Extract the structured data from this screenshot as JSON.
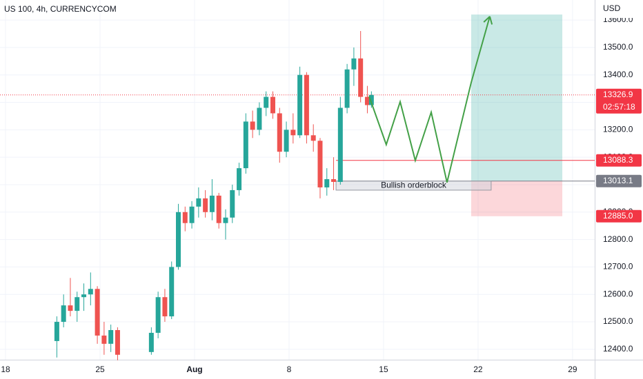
{
  "chart_data": {
    "type": "candlestick",
    "title": "US 100, 4h, CURRENCYCOM",
    "currency": "USD",
    "colors": {
      "up": "#26a69a",
      "down": "#ef5350"
    },
    "xlim": [
      -0.41,
      43.64
    ],
    "ylim": [
      12362,
      13673
    ],
    "xticks": [
      {
        "value": 0,
        "label": "18"
      },
      {
        "value": 7,
        "label": "25"
      },
      {
        "value": 14,
        "label": "Aug"
      },
      {
        "value": 21,
        "label": "8"
      },
      {
        "value": 28,
        "label": "15"
      },
      {
        "value": 35,
        "label": "22"
      },
      {
        "value": 42,
        "label": "29"
      }
    ],
    "yticks": [
      {
        "value": 12400,
        "label": "12400.0"
      },
      {
        "value": 12500,
        "label": "12500.0"
      },
      {
        "value": 12600,
        "label": "12600.0"
      },
      {
        "value": 12700,
        "label": "12700.0"
      },
      {
        "value": 12800,
        "label": "12800.0"
      },
      {
        "value": 12900,
        "label": "12900.0"
      },
      {
        "value": 13000,
        "label": "13000.0"
      },
      {
        "value": 13100,
        "label": "13100.0"
      },
      {
        "value": 13200,
        "label": "13200.0"
      },
      {
        "value": 13300,
        "label": "13300.0"
      },
      {
        "value": 13400,
        "label": "13400.0"
      },
      {
        "value": 13500,
        "label": "13500.0"
      },
      {
        "value": 13600,
        "label": "13600.0"
      }
    ],
    "x": [
      3.8,
      4.3,
      4.8,
      5.3,
      5.8,
      6.3,
      6.8,
      7.3,
      7.8,
      8.3,
      10.8,
      11.3,
      11.8,
      12.3,
      12.8,
      13.3,
      13.8,
      14.3,
      14.8,
      15.3,
      15.8,
      16.3,
      16.8,
      17.3,
      17.8,
      18.3,
      18.8,
      19.3,
      19.8,
      20.3,
      20.8,
      21.3,
      21.8,
      22.3,
      22.8,
      23.3,
      23.8,
      24.3,
      24.8,
      25.3,
      25.8,
      26.3,
      26.8,
      27.1
    ],
    "open": [
      12430,
      12500,
      12560,
      12540,
      12590,
      12600,
      12620,
      12450,
      12420,
      12470,
      12390,
      12460,
      12590,
      12520,
      12700,
      12900,
      12860,
      12920,
      12950,
      12900,
      12960,
      12860,
      12880,
      12980,
      13060,
      13230,
      13200,
      13280,
      13320,
      13260,
      13120,
      13200,
      13180,
      13400,
      13180,
      13160,
      12990,
      13020,
      13010,
      13280,
      13420,
      13460,
      13320,
      13290
    ],
    "high": [
      12520,
      12600,
      12660,
      12610,
      12640,
      12680,
      12630,
      12500,
      12490,
      12480,
      12480,
      12610,
      12620,
      12720,
      12930,
      12920,
      12940,
      12990,
      12980,
      13020,
      12970,
      12910,
      13000,
      13080,
      13260,
      13270,
      13300,
      13340,
      13340,
      13280,
      13230,
      13260,
      13430,
      13410,
      13220,
      13170,
      13060,
      13100,
      13320,
      13440,
      13500,
      13560,
      13360,
      13340
    ],
    "low": [
      12370,
      12480,
      12520,
      12500,
      12540,
      12560,
      12420,
      12380,
      12390,
      12360,
      12380,
      12440,
      12500,
      12510,
      12690,
      12830,
      12840,
      12880,
      12880,
      12870,
      12840,
      12800,
      12860,
      12960,
      13040,
      13170,
      13180,
      13250,
      13240,
      13080,
      13100,
      13150,
      13170,
      13150,
      13120,
      12950,
      12960,
      12980,
      13000,
      13260,
      13360,
      13300,
      13260,
      13280
    ],
    "close": [
      12500,
      12560,
      12540,
      12590,
      12600,
      12620,
      12450,
      12420,
      12470,
      12380,
      12460,
      12590,
      12520,
      12700,
      12900,
      12860,
      12920,
      12950,
      12900,
      12960,
      12860,
      12880,
      12980,
      13060,
      13230,
      13200,
      13280,
      13320,
      13260,
      13120,
      13200,
      13180,
      13400,
      13180,
      13160,
      12990,
      13020,
      13010,
      13280,
      13420,
      13460,
      13320,
      13290,
      13326.9
    ],
    "current_price": {
      "value": 13326.9,
      "label": "13326.9",
      "countdown": "02:57:18",
      "color": "#f23645"
    },
    "levels": [
      {
        "value": 13088.3,
        "label": "13088.3",
        "color": "#f23645",
        "start": 24.48
      },
      {
        "value": 13013.1,
        "label": "13013.1",
        "color": "#787b86",
        "start": 24.48
      }
    ],
    "orderblock": {
      "label": "Bullish orderblock",
      "x": [
        24.48,
        35.97
      ],
      "y": [
        12980,
        13013.1
      ]
    },
    "position": {
      "x": [
        34.49,
        41.24
      ],
      "entry": 13013.1,
      "target": 13620,
      "stop": {
        "value": 12885,
        "label": "12885.0"
      }
    },
    "projection": {
      "color": "#43a047",
      "x": [
        26.93,
        28.2,
        29.23,
        30.35,
        31.53,
        32.7,
        34.49,
        35.87
      ],
      "y": [
        13322,
        13146,
        13302,
        13088,
        13264,
        13008,
        13372,
        13613
      ]
    }
  }
}
